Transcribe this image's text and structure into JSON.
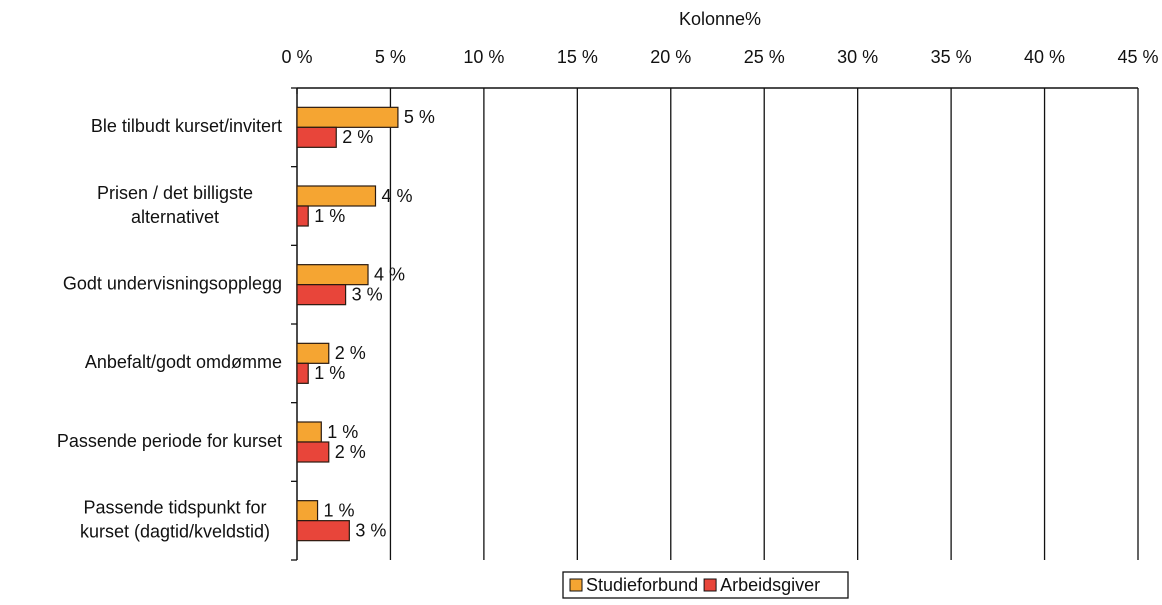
{
  "chart_data": {
    "type": "hbar",
    "x_label": "Kolonne%",
    "categories": [
      [
        "Ble tilbudt kurset/invitert"
      ],
      [
        "Prisen / det billigste",
        "alternativet"
      ],
      [
        "Godt undervisningsopplegg"
      ],
      [
        "Anbefalt/godt omdømme"
      ],
      [
        "Passende periode for kurset"
      ],
      [
        "Passende tidspunkt for",
        "kurset (dagtid/kveldstid)"
      ]
    ],
    "series": [
      {
        "name": "Studieforbund",
        "color": "#f5a532",
        "values": [
          5.4,
          4.2,
          3.8,
          1.7,
          1.3,
          1.1
        ],
        "value_labels": [
          "5 %",
          "4 %",
          "4 %",
          "2 %",
          "1 %",
          "1 %"
        ]
      },
      {
        "name": "Arbeidsgiver",
        "color": "#e8453a",
        "values": [
          2.1,
          0.6,
          2.6,
          0.6,
          1.7,
          2.8
        ],
        "value_labels": [
          "2 %",
          "1 %",
          "3 %",
          "1 %",
          "2 %",
          "3 %"
        ]
      }
    ],
    "xlim": [
      0,
      45
    ],
    "xticks": [
      {
        "value": 0,
        "label": "0 %"
      },
      {
        "value": 5,
        "label": "5 %"
      },
      {
        "value": 10,
        "label": "10 %"
      },
      {
        "value": 15,
        "label": "15 %"
      },
      {
        "value": 20,
        "label": "20 %"
      },
      {
        "value": 25,
        "label": "25 %"
      },
      {
        "value": 30,
        "label": "30 %"
      },
      {
        "value": 35,
        "label": "35 %"
      },
      {
        "value": 40,
        "label": "40 %"
      },
      {
        "value": 45,
        "label": "45 %"
      }
    ],
    "grid": true,
    "legend": "bottom"
  }
}
